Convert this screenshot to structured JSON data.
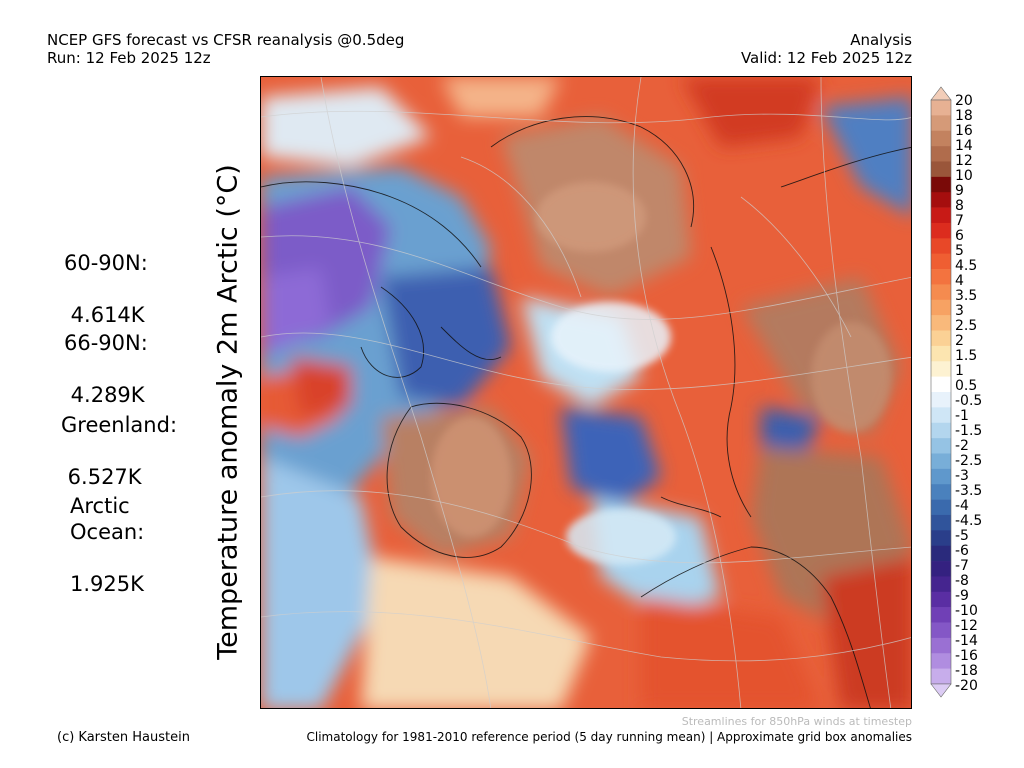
{
  "header": {
    "title_line1": "NCEP GFS forecast vs CFSR reanalysis @0.5deg",
    "title_line2": "Run: 12 Feb 2025 12z",
    "right_line1": "Analysis",
    "right_line2": "Valid: 12 Feb 2025 12z"
  },
  "y_axis_label": "Temperature anomaly 2m Arctic (°C)",
  "stats": [
    {
      "label": "60-90N:",
      "value": " 4.614K"
    },
    {
      "label": "66-90N:",
      "value": " 4.289K"
    },
    {
      "label": "Greenland:",
      "value": " 6.527K"
    },
    {
      "label": "Arctic\nOcean:",
      "value": "1.925K"
    }
  ],
  "colorbar": {
    "labels": [
      "20",
      "18",
      "16",
      "14",
      "12",
      "10",
      "9",
      "8",
      "7",
      "6",
      "5",
      "4.5",
      "4",
      "3.5",
      "3",
      "2.5",
      "2",
      "1.5",
      "1",
      "0.5",
      "-0.5",
      "-1",
      "-1.5",
      "-2",
      "-2.5",
      "-3",
      "-3.5",
      "-4",
      "-4.5",
      "-5",
      "-6",
      "-7",
      "-8",
      "-9",
      "-10",
      "-12",
      "-14",
      "-16",
      "-18",
      "-20"
    ],
    "colors": [
      "#f2cdb8",
      "#e7b193",
      "#d59a78",
      "#c3825f",
      "#b06c4c",
      "#9a563a",
      "#7a0a08",
      "#a50e0e",
      "#c81a16",
      "#dc2c1e",
      "#e84828",
      "#ef5e32",
      "#f3733f",
      "#f58b4f",
      "#f7a263",
      "#f9b97b",
      "#fbd195",
      "#fce5b0",
      "#fdf2d2",
      "#ffffff",
      "#e8f2fb",
      "#cfe6f6",
      "#b3d6ee",
      "#95c3e4",
      "#78aed8",
      "#5f98cc",
      "#4a81bd",
      "#3a6aad",
      "#30549b",
      "#2a3e8a",
      "#2a2a7c",
      "#342180",
      "#45258f",
      "#5a2ea3",
      "#7040b6",
      "#8457c6",
      "#9a70d3",
      "#b08de0",
      "#c7adeb",
      "#dcccf4"
    ]
  },
  "footer": {
    "streamline_note": "Streamlines for 850hPa winds at timestep",
    "credit": "(c) Karsten Haustein",
    "climatology_note": "Climatology for 1981-2010 reference period (5 day running mean) | Approximate grid box anomalies"
  }
}
